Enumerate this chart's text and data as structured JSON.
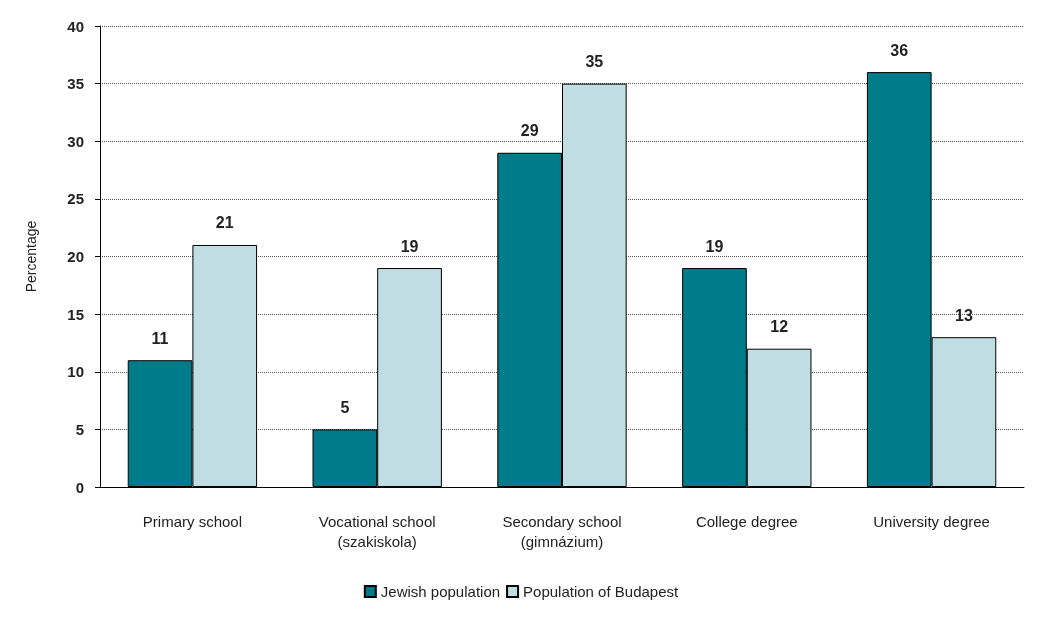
{
  "chart_data": {
    "type": "bar",
    "ylabel": "Percentage",
    "categories": [
      "Primary school",
      "Vocational school\n(szakiskola)",
      "Secondary school\n(gimnázium)",
      "College degree",
      "University degree"
    ],
    "series": [
      {
        "name": "Jewish population",
        "color": "#007b8a",
        "values": [
          11,
          5,
          29,
          19,
          36
        ]
      },
      {
        "name": "Population of Budapest",
        "color": "#bfdde2",
        "values": [
          21,
          19,
          35,
          12,
          13
        ]
      }
    ],
    "ylim": [
      0,
      40
    ],
    "yticks": [
      0,
      5,
      10,
      15,
      20,
      25,
      30,
      35,
      40
    ],
    "grid": "y",
    "legend": "bottom",
    "data_labels": true
  }
}
